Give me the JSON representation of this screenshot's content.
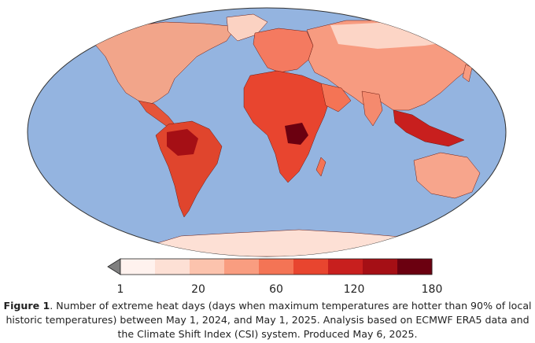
{
  "map": {
    "ocean_color": "#94b4e0",
    "land_default_color": "#f2a58a",
    "projection": "robinson-like oval"
  },
  "colorbar": {
    "tick_labels": [
      "1",
      "20",
      "60",
      "120",
      "180"
    ],
    "bins": [
      {
        "color": "#fff2ee"
      },
      {
        "color": "#fde0d5"
      },
      {
        "color": "#fcc3ad"
      },
      {
        "color": "#f99d80"
      },
      {
        "color": "#f47455"
      },
      {
        "color": "#e8452f"
      },
      {
        "color": "#c81f1e"
      },
      {
        "color": "#a50f15"
      },
      {
        "color": "#6b0010"
      }
    ],
    "under_color": "#808080"
  },
  "caption": {
    "label": "Figure 1",
    "text": ". Number of extreme heat days (days when maximum temperatures are hotter than 90% of local historic temperatures) between May 1, 2024, and May 1, 2025. Analysis based on ECMWF ERA5 data and the Climate Shift Index (CSI) system. Produced May 6, 2025."
  }
}
